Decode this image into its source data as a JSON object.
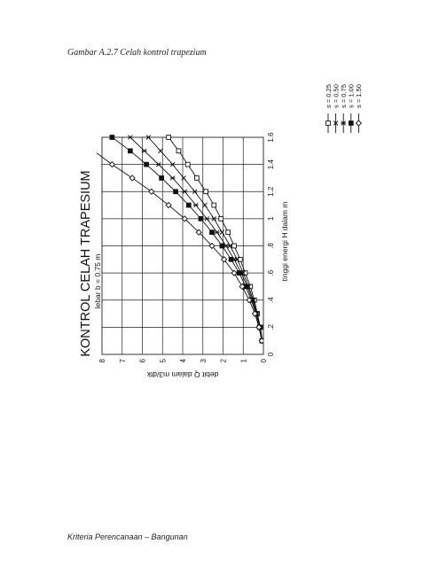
{
  "page": {
    "caption": "Gambar A.2.7   Celah kontrol  trapezium",
    "footer": "Kriteria Perencanaan – Bangunan"
  },
  "chart_data": {
    "type": "line",
    "title": "KONTROL CELAH TRAPESIUM",
    "subtitle": "lebar b = 0.75 m",
    "xlabel": "tinggi energi H dalam m",
    "ylabel": "debit Q dalam m3/dtk",
    "xlim": [
      0,
      1.6
    ],
    "ylim": [
      0,
      8
    ],
    "x_ticks": [
      "0",
      ".2",
      ".4",
      ".6",
      ".8",
      "1",
      "1.2",
      "1.4",
      "1.6"
    ],
    "y_ticks": [
      "0",
      "1",
      "2",
      "3",
      "4",
      "5",
      "6",
      "7",
      "8"
    ],
    "grid": true,
    "legend_position": "right",
    "orientation": "rotated 90° counter-clockwise",
    "colors": {
      "ink": "#111111",
      "grid": "#222222"
    },
    "series": [
      {
        "name": "s = 0.25",
        "marker": "square",
        "x": [
          0.1,
          0.2,
          0.3,
          0.4,
          0.5,
          0.6,
          0.7,
          0.8,
          0.9,
          1.0,
          1.1,
          1.2,
          1.3,
          1.4,
          1.5,
          1.6
        ],
        "y": [
          0.05,
          0.15,
          0.3,
          0.45,
          0.65,
          0.9,
          1.15,
          1.45,
          1.75,
          2.1,
          2.45,
          2.85,
          3.3,
          3.75,
          4.2,
          4.7
        ]
      },
      {
        "name": "s = 0.50",
        "marker": "x",
        "x": [
          0.1,
          0.2,
          0.3,
          0.4,
          0.5,
          0.6,
          0.7,
          0.8,
          0.9,
          1.0,
          1.1,
          1.2,
          1.3,
          1.4,
          1.5,
          1.6
        ],
        "y": [
          0.06,
          0.17,
          0.33,
          0.5,
          0.74,
          1.0,
          1.3,
          1.65,
          2.05,
          2.45,
          2.9,
          3.4,
          3.95,
          4.5,
          5.1,
          5.7
        ]
      },
      {
        "name": "s = 0.75",
        "marker": "asterisk",
        "x": [
          0.1,
          0.2,
          0.3,
          0.4,
          0.5,
          0.6,
          0.7,
          0.8,
          0.9,
          1.0,
          1.1,
          1.2,
          1.3,
          1.4,
          1.5,
          1.6
        ],
        "y": [
          0.06,
          0.18,
          0.35,
          0.55,
          0.8,
          1.1,
          1.45,
          1.85,
          2.3,
          2.8,
          3.35,
          3.9,
          4.5,
          5.2,
          5.9,
          6.6
        ]
      },
      {
        "name": "s = 1.00",
        "marker": "filled-square",
        "x": [
          0.1,
          0.2,
          0.3,
          0.4,
          0.5,
          0.6,
          0.7,
          0.8,
          0.9,
          1.0,
          1.1,
          1.2,
          1.3,
          1.4,
          1.5,
          1.6
        ],
        "y": [
          0.07,
          0.19,
          0.37,
          0.6,
          0.88,
          1.2,
          1.6,
          2.05,
          2.55,
          3.1,
          3.7,
          4.35,
          5.05,
          5.8,
          6.6,
          7.5
        ]
      },
      {
        "name": "s = 1.50",
        "marker": "diamond",
        "x": [
          0.1,
          0.2,
          0.3,
          0.4,
          0.5,
          0.6,
          0.7,
          0.8,
          0.9,
          1.0,
          1.1,
          1.2,
          1.3,
          1.4,
          1.5
        ],
        "y": [
          0.08,
          0.22,
          0.42,
          0.7,
          1.05,
          1.45,
          1.95,
          2.55,
          3.2,
          3.9,
          4.7,
          5.55,
          6.5,
          7.5,
          8.4
        ]
      }
    ]
  }
}
